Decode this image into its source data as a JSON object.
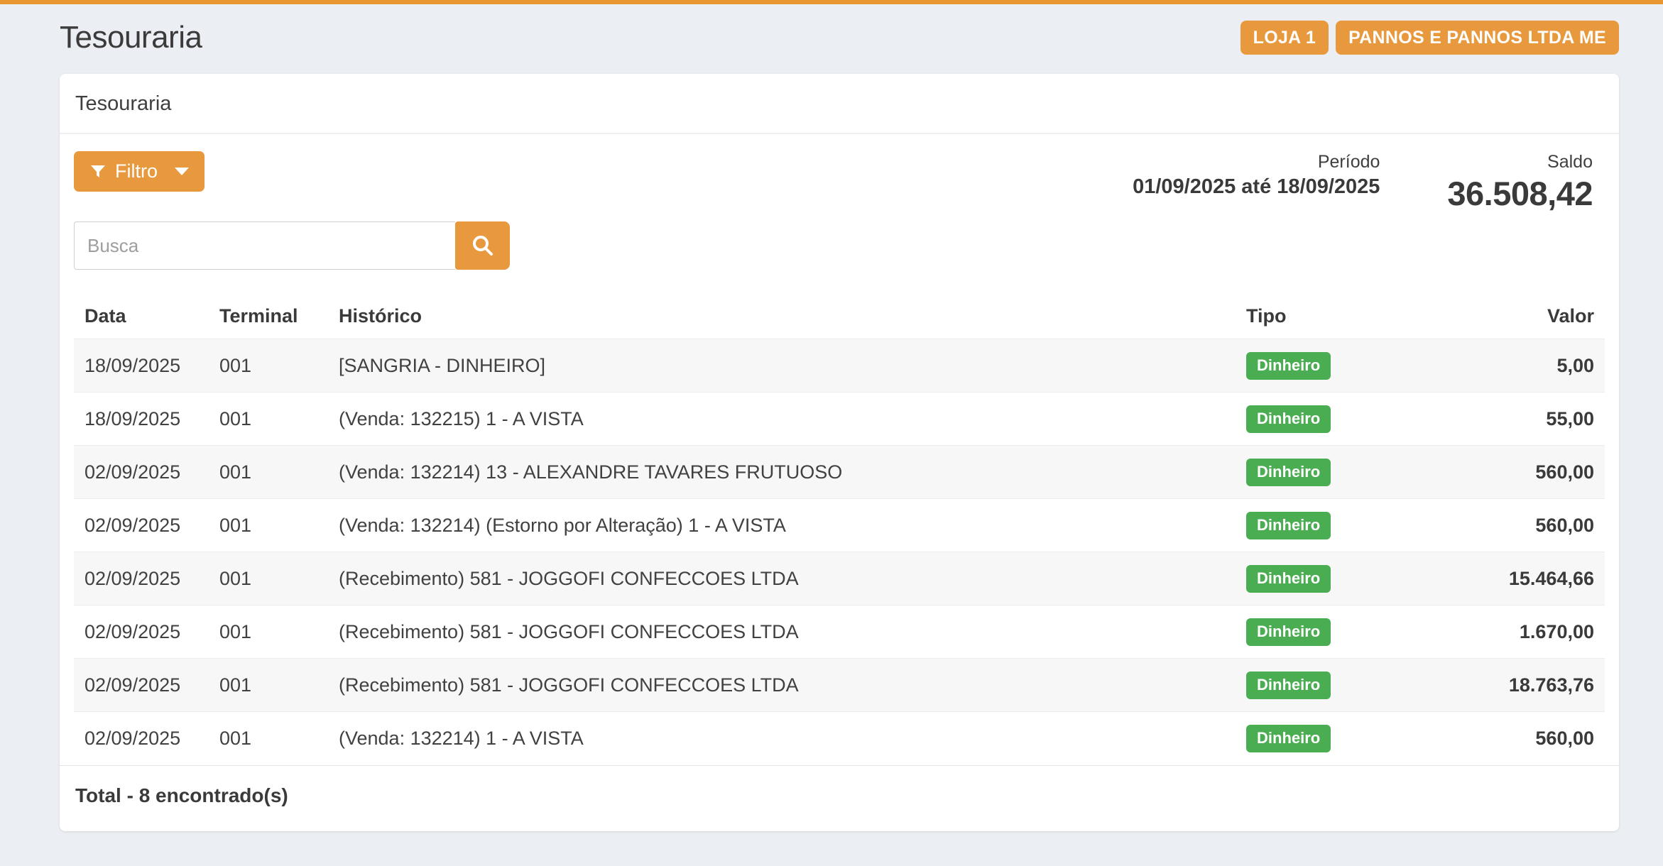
{
  "page": {
    "title": "Tesouraria"
  },
  "header": {
    "buttons": [
      {
        "label": "LOJA 1"
      },
      {
        "label": "PANNOS E PANNOS LTDA ME"
      }
    ]
  },
  "card": {
    "title": "Tesouraria",
    "filter": {
      "label": "Filtro"
    },
    "search": {
      "placeholder": "Busca",
      "value": ""
    },
    "periodo": {
      "label": "Período",
      "value": "01/09/2025 até 18/09/2025"
    },
    "saldo": {
      "label": "Saldo",
      "value": "36.508,42"
    },
    "table": {
      "columns": [
        "Data",
        "Terminal",
        "Histórico",
        "Tipo",
        "Valor"
      ],
      "rows": [
        {
          "data": "18/09/2025",
          "terminal": "001",
          "historico": "[SANGRIA - DINHEIRO]",
          "tipo": "Dinheiro",
          "valor": "5,00"
        },
        {
          "data": "18/09/2025",
          "terminal": "001",
          "historico": "(Venda: 132215) 1 - A VISTA",
          "tipo": "Dinheiro",
          "valor": "55,00"
        },
        {
          "data": "02/09/2025",
          "terminal": "001",
          "historico": "(Venda: 132214) 13 - ALEXANDRE TAVARES FRUTUOSO",
          "tipo": "Dinheiro",
          "valor": "560,00"
        },
        {
          "data": "02/09/2025",
          "terminal": "001",
          "historico": "(Venda: 132214) (Estorno por Alteração) 1 - A VISTA",
          "tipo": "Dinheiro",
          "valor": "560,00"
        },
        {
          "data": "02/09/2025",
          "terminal": "001",
          "historico": "(Recebimento) 581 - JOGGOFI CONFECCOES LTDA",
          "tipo": "Dinheiro",
          "valor": "15.464,66"
        },
        {
          "data": "02/09/2025",
          "terminal": "001",
          "historico": "(Recebimento) 581 - JOGGOFI CONFECCOES LTDA",
          "tipo": "Dinheiro",
          "valor": "1.670,00"
        },
        {
          "data": "02/09/2025",
          "terminal": "001",
          "historico": "(Recebimento) 581 - JOGGOFI CONFECCOES LTDA",
          "tipo": "Dinheiro",
          "valor": "18.763,76"
        },
        {
          "data": "02/09/2025",
          "terminal": "001",
          "historico": "(Venda: 132214) 1 - A VISTA",
          "tipo": "Dinheiro",
          "valor": "560,00"
        }
      ],
      "footer": "Total - 8 encontrado(s)"
    }
  },
  "colors": {
    "accent_orange": "#E8993E",
    "badge_green": "#4BAD52",
    "page_background": "#EBEEF2"
  }
}
